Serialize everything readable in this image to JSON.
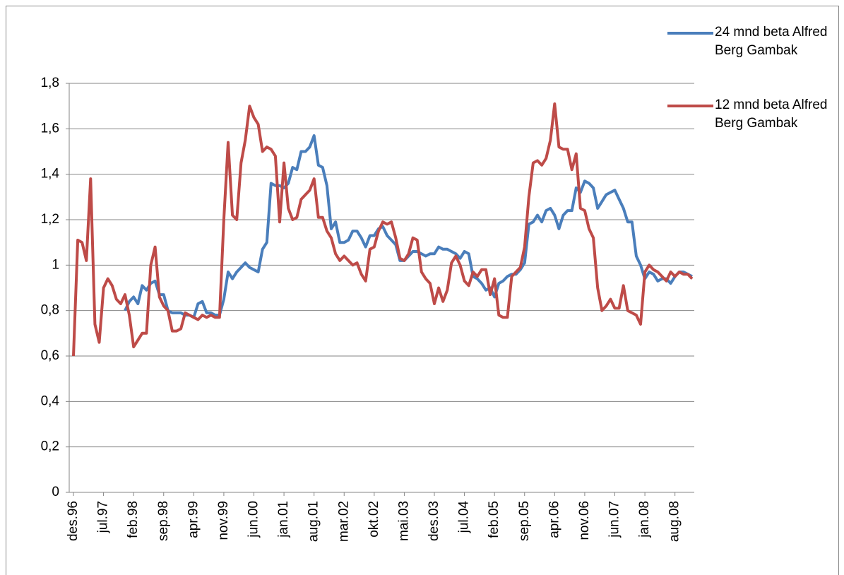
{
  "chart_data": {
    "type": "line",
    "categories": [
      "des.96",
      null,
      null,
      null,
      null,
      null,
      null,
      "jul.97",
      null,
      null,
      null,
      null,
      null,
      null,
      "feb.98",
      null,
      null,
      null,
      null,
      null,
      null,
      "sep.98",
      null,
      null,
      null,
      null,
      null,
      null,
      "apr.99",
      null,
      null,
      null,
      null,
      null,
      null,
      "nov.99",
      null,
      null,
      null,
      null,
      null,
      null,
      "jun.00",
      null,
      null,
      null,
      null,
      null,
      null,
      "jan.01",
      null,
      null,
      null,
      null,
      null,
      null,
      "aug.01",
      null,
      null,
      null,
      null,
      null,
      null,
      "mar.02",
      null,
      null,
      null,
      null,
      null,
      null,
      "okt.02",
      null,
      null,
      null,
      null,
      null,
      null,
      "mai.03",
      null,
      null,
      null,
      null,
      null,
      null,
      "des.03",
      null,
      null,
      null,
      null,
      null,
      null,
      "jul.04",
      null,
      null,
      null,
      null,
      null,
      null,
      "feb.05",
      null,
      null,
      null,
      null,
      null,
      null,
      "sep.05",
      null,
      null,
      null,
      null,
      null,
      null,
      "apr.06",
      null,
      null,
      null,
      null,
      null,
      null,
      "nov.06",
      null,
      null,
      null,
      null,
      null,
      null,
      "jun.07",
      null,
      null,
      null,
      null,
      null,
      null,
      "jan.08",
      null,
      null,
      null,
      null,
      null,
      null,
      "aug.08",
      null,
      null,
      null,
      null
    ],
    "series": [
      {
        "name": "24 mnd beta Alfred Berg Gambak",
        "color": "#4a7ebb",
        "values": [
          null,
          null,
          null,
          null,
          null,
          null,
          null,
          null,
          null,
          null,
          null,
          null,
          0.8,
          0.84,
          0.86,
          0.83,
          0.91,
          0.89,
          0.92,
          0.93,
          0.87,
          0.87,
          0.8,
          0.79,
          0.79,
          0.79,
          0.78,
          0.78,
          0.77,
          0.83,
          0.84,
          0.79,
          0.79,
          0.78,
          0.78,
          0.85,
          0.97,
          0.94,
          0.97,
          0.99,
          1.01,
          0.99,
          0.98,
          0.97,
          1.07,
          1.1,
          1.36,
          1.35,
          1.35,
          1.34,
          1.36,
          1.43,
          1.42,
          1.5,
          1.5,
          1.52,
          1.57,
          1.44,
          1.43,
          1.35,
          1.16,
          1.19,
          1.1,
          1.1,
          1.11,
          1.15,
          1.15,
          1.12,
          1.08,
          1.13,
          1.13,
          1.16,
          1.17,
          1.13,
          1.11,
          1.09,
          1.02,
          1.02,
          1.04,
          1.06,
          1.06,
          1.05,
          1.04,
          1.05,
          1.05,
          1.08,
          1.07,
          1.07,
          1.06,
          1.05,
          1.03,
          1.06,
          1.05,
          0.95,
          0.94,
          0.92,
          0.89,
          0.9,
          0.86,
          0.92,
          0.93,
          0.95,
          0.96,
          0.96,
          0.98,
          1.01,
          1.18,
          1.19,
          1.22,
          1.19,
          1.24,
          1.25,
          1.22,
          1.16,
          1.22,
          1.24,
          1.24,
          1.34,
          1.32,
          1.37,
          1.36,
          1.34,
          1.25,
          1.28,
          1.31,
          1.32,
          1.33,
          1.29,
          1.25,
          1.19,
          1.19,
          1.04,
          1.0,
          0.94,
          0.97,
          0.96,
          0.93,
          0.94,
          0.94,
          0.92,
          0.95,
          0.97,
          0.97,
          0.96,
          0.95
        ]
      },
      {
        "name": "12 mnd beta Alfred Berg Gambak",
        "color": "#be4b48",
        "values": [
          0.6,
          1.11,
          1.1,
          1.02,
          1.38,
          0.74,
          0.66,
          0.9,
          0.94,
          0.91,
          0.85,
          0.83,
          0.87,
          0.78,
          0.64,
          0.67,
          0.7,
          0.7,
          1.0,
          1.08,
          0.86,
          0.82,
          0.8,
          0.71,
          0.71,
          0.72,
          0.79,
          0.78,
          0.77,
          0.76,
          0.78,
          0.77,
          0.78,
          0.77,
          0.77,
          1.2,
          1.54,
          1.22,
          1.2,
          1.45,
          1.55,
          1.7,
          1.65,
          1.62,
          1.5,
          1.52,
          1.51,
          1.48,
          1.19,
          1.45,
          1.25,
          1.2,
          1.21,
          1.29,
          1.31,
          1.33,
          1.38,
          1.21,
          1.21,
          1.15,
          1.12,
          1.05,
          1.02,
          1.04,
          1.02,
          1.0,
          1.01,
          0.96,
          0.93,
          1.07,
          1.08,
          1.15,
          1.19,
          1.18,
          1.19,
          1.12,
          1.03,
          1.02,
          1.05,
          1.12,
          1.11,
          0.97,
          0.94,
          0.92,
          0.83,
          0.9,
          0.84,
          0.89,
          1.01,
          1.04,
          1.0,
          0.93,
          0.91,
          0.97,
          0.95,
          0.98,
          0.98,
          0.87,
          0.94,
          0.78,
          0.77,
          0.77,
          0.95,
          0.97,
          0.99,
          1.08,
          1.3,
          1.45,
          1.46,
          1.44,
          1.47,
          1.55,
          1.71,
          1.52,
          1.51,
          1.51,
          1.42,
          1.49,
          1.25,
          1.24,
          1.16,
          1.12,
          0.9,
          0.8,
          0.82,
          0.85,
          0.81,
          0.81,
          0.91,
          0.8,
          0.79,
          0.78,
          0.74,
          0.97,
          1.0,
          0.98,
          0.97,
          0.95,
          0.93,
          0.97,
          0.95,
          0.97,
          0.96,
          0.96,
          0.94
        ]
      }
    ],
    "ylim": [
      0,
      1.8
    ],
    "yticks": [
      0,
      {
        "value": 0.2,
        "label": "0,2"
      },
      {
        "value": 0.4,
        "label": "0,4"
      },
      {
        "value": 0.6,
        "label": "0,6"
      },
      {
        "value": 0.8,
        "label": "0,8"
      },
      1,
      {
        "value": 1.2,
        "label": "1,2"
      },
      {
        "value": 1.4,
        "label": "1,4"
      },
      {
        "value": 1.6,
        "label": "1,6"
      },
      {
        "value": 1.8,
        "label": "1,8"
      }
    ],
    "grid": true
  }
}
